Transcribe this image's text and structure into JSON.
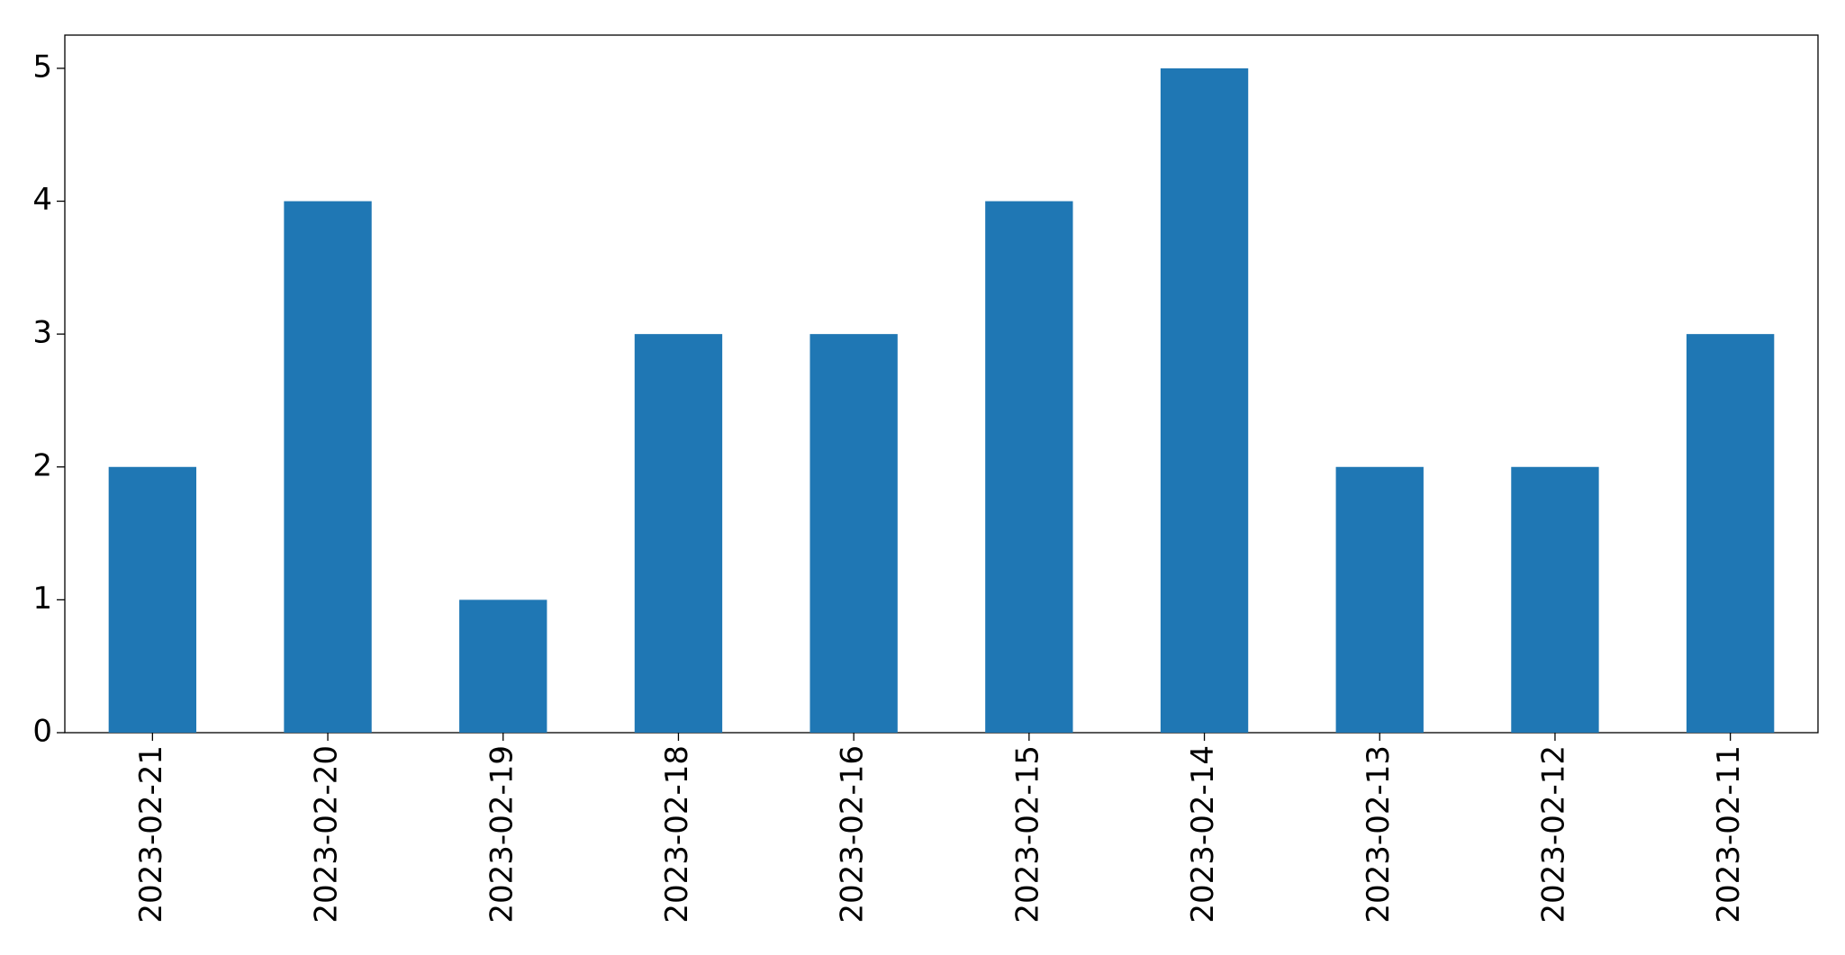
{
  "chart_data": {
    "type": "bar",
    "categories": [
      "2023-02-21",
      "2023-02-20",
      "2023-02-19",
      "2023-02-18",
      "2023-02-16",
      "2023-02-15",
      "2023-02-14",
      "2023-02-13",
      "2023-02-12",
      "2023-02-11"
    ],
    "values": [
      2,
      4,
      1,
      3,
      3,
      4,
      5,
      2,
      2,
      3
    ],
    "color": "#1f77b4",
    "ylim": [
      0,
      5.25
    ],
    "yticks": [
      0,
      1,
      2,
      3,
      4,
      5
    ],
    "grid": false
  }
}
